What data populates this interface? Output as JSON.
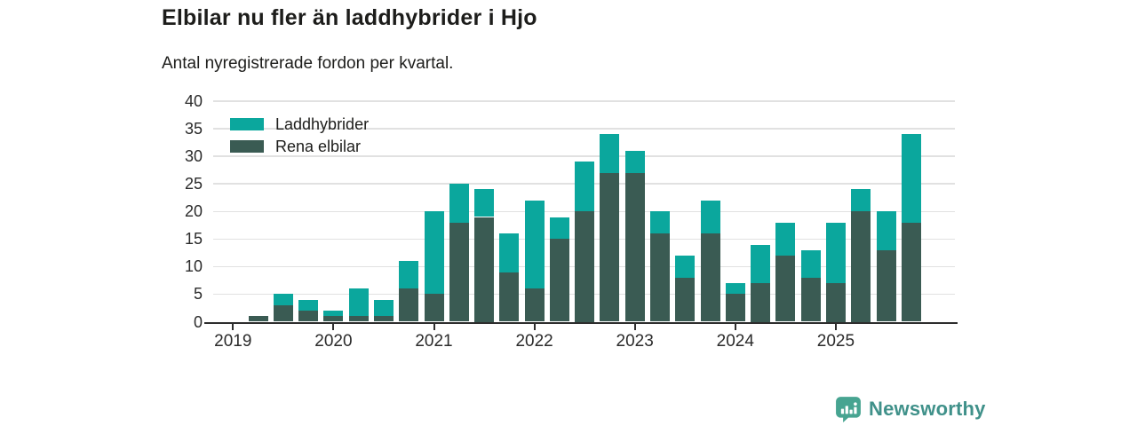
{
  "header": {
    "title": "Elbilar nu fler än laddhybrider i Hjo",
    "subtitle": "Antal nyregistrerade fordon per kvartal."
  },
  "legend": [
    {
      "label": "Laddhybrider",
      "color": "#0ba79d"
    },
    {
      "label": "Rena elbilar",
      "color": "#3a5b53"
    }
  ],
  "chart_data": {
    "type": "bar",
    "stacked": true,
    "title": "Elbilar nu fler än laddhybrider i Hjo",
    "subtitle": "Antal nyregistrerade fordon per kvartal.",
    "x_quarters": [
      "2019 Q1",
      "2019 Q2",
      "2019 Q3",
      "2019 Q4",
      "2020 Q1",
      "2020 Q2",
      "2020 Q3",
      "2020 Q4",
      "2021 Q1",
      "2021 Q2",
      "2021 Q3",
      "2021 Q4",
      "2022 Q1",
      "2022 Q2",
      "2022 Q3",
      "2022 Q4",
      "2023 Q1",
      "2023 Q2",
      "2023 Q3",
      "2023 Q4",
      "2024 Q1",
      "2024 Q2",
      "2024 Q3",
      "2024 Q4",
      "2025 Q1",
      "2025 Q2",
      "2025 Q3",
      "2025 Q4"
    ],
    "series": [
      {
        "name": "Rena elbilar",
        "color": "#3a5b53",
        "values": [
          0,
          1,
          3,
          2,
          1,
          1,
          1,
          6,
          5,
          18,
          19,
          9,
          6,
          15,
          20,
          27,
          27,
          16,
          8,
          16,
          5,
          7,
          12,
          8,
          7,
          20,
          13,
          18
        ]
      },
      {
        "name": "Laddhybrider",
        "color": "#0ba79d",
        "values": [
          0,
          0,
          2,
          2,
          1,
          5,
          3,
          5,
          15,
          7,
          5,
          7,
          16,
          4,
          9,
          7,
          4,
          4,
          4,
          6,
          2,
          7,
          6,
          5,
          11,
          4,
          7,
          16
        ]
      }
    ],
    "totals": [
      0,
      1,
      5,
      4,
      2,
      6,
      4,
      11,
      20,
      25,
      24,
      16,
      22,
      19,
      29,
      34,
      31,
      20,
      12,
      22,
      7,
      14,
      18,
      13,
      18,
      24,
      20,
      34
    ],
    "ylim": [
      0,
      40
    ],
    "yticks": [
      0,
      5,
      10,
      15,
      20,
      25,
      30,
      35,
      40
    ],
    "year_labels": [
      "2019",
      "2020",
      "2021",
      "2022",
      "2023",
      "2024",
      "2025"
    ],
    "grid": true,
    "legend_position": "top-left-inside"
  },
  "colors": {
    "hybrid": "#0ba79d",
    "electric": "#3a5b53",
    "gridline": "#e1e1e1",
    "axis": "#2d2d2d",
    "text": "#1d1d1b",
    "brand_text": "#40918a",
    "brand_icon": "#47a491"
  },
  "footer": {
    "brand": "Newsworthy"
  }
}
